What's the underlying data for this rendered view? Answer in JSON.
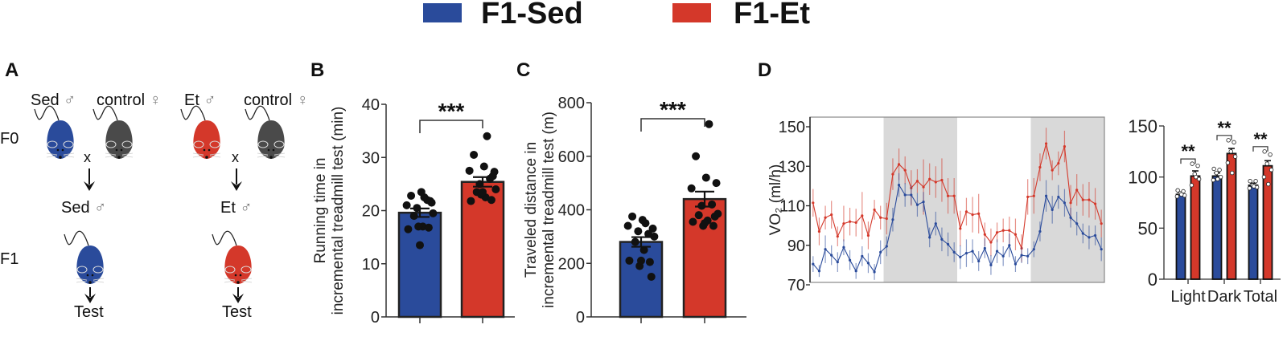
{
  "legend": {
    "items": [
      {
        "label": "F1-Sed",
        "color": "#2a4b9b"
      },
      {
        "label": "F1-Et",
        "color": "#d4382a"
      }
    ]
  },
  "panelA": {
    "letter": "A",
    "rows": {
      "f0": "F0",
      "f1": "F1"
    },
    "left": {
      "sire": "Sed",
      "dam": "control",
      "cross": "x",
      "offspring": "Sed",
      "test": "Test"
    },
    "right": {
      "sire": "Et",
      "dam": "control",
      "cross": "x",
      "offspring": "Et",
      "test": "Test"
    },
    "male_symbol": "♂",
    "female_symbol": "♀",
    "mouse_colors": {
      "sed": "#2a4b9b",
      "et": "#d4382a",
      "control": "#4a4a4a"
    }
  },
  "chart_data": [
    {
      "id": "B",
      "type": "bar",
      "letter": "B",
      "title": "",
      "xlabel": "",
      "ylabel": "Running time in\nincremental treadmill test (min)",
      "ylabel_lines": [
        "Running time in",
        "incremental treadmill test (min)"
      ],
      "ylim": [
        0,
        40
      ],
      "yticks": [
        0,
        10,
        20,
        30,
        40
      ],
      "significance": "***",
      "categories": [
        "F1-Sed",
        "F1-Et"
      ],
      "series": [
        {
          "name": "F1-Sed",
          "mean": 19.6,
          "sem": 0.8,
          "color": "#2a4b9b",
          "points": [
            22.5,
            22.8,
            23.5,
            21.5,
            21.0,
            22.0,
            20.5,
            19.5,
            19.0,
            17.0,
            16.5,
            16.8,
            17.0,
            13.5,
            21.8
          ]
        },
        {
          "name": "F1-Et",
          "mean": 25.4,
          "sem": 0.9,
          "color": "#d4382a",
          "points": [
            34.0,
            30.5,
            28.3,
            27.3,
            27.5,
            26.0,
            25.0,
            24.0,
            23.5,
            22.5,
            21.8,
            22.0,
            23.0,
            23.5,
            26.5
          ]
        }
      ]
    },
    {
      "id": "C",
      "type": "bar",
      "letter": "C",
      "title": "",
      "xlabel": "",
      "ylabel": "Traveled distance in\nincremental treadmill test (m)",
      "ylabel_lines": [
        "Traveled distance in",
        "incremental treadmill test (m)"
      ],
      "ylim": [
        0,
        800
      ],
      "yticks": [
        0,
        200,
        400,
        600,
        800
      ],
      "significance": "***",
      "categories": [
        "F1-Sed",
        "F1-Et"
      ],
      "series": [
        {
          "name": "F1-Sed",
          "mean": 280,
          "sem": 18,
          "color": "#2a4b9b",
          "points": [
            350,
            375,
            362,
            330,
            340,
            310,
            320,
            300,
            280,
            250,
            210,
            205,
            190,
            210,
            150
          ]
        },
        {
          "name": "F1-Et",
          "mean": 440,
          "sem": 28,
          "color": "#d4382a",
          "points": [
            720,
            600,
            520,
            500,
            480,
            420,
            415,
            385,
            380,
            360,
            355,
            340,
            340,
            350,
            375
          ]
        }
      ]
    },
    {
      "id": "D-line",
      "type": "line",
      "letter": "D",
      "title": "",
      "xlabel": "",
      "ylabel": "VO₂ (ml/h)",
      "ylim": [
        70,
        150
      ],
      "yticks": [
        70,
        90,
        110,
        130,
        150
      ],
      "shaded_periods": [
        "dark",
        "dark"
      ],
      "dark_ranges_index": [
        [
          12,
          24
        ],
        [
          36,
          48
        ]
      ],
      "series": [
        {
          "name": "F1-Sed",
          "color": "#2a4b9b",
          "values": [
            80.5,
            77,
            88,
            85,
            81.5,
            89,
            82.5,
            77,
            84.5,
            81,
            76.5,
            86.5,
            89.5,
            103,
            120.5,
            115.5,
            115.5,
            110.5,
            112,
            94,
            101,
            93,
            90.5,
            86.5,
            84,
            86,
            87,
            82,
            88.5,
            80,
            87,
            84.5,
            90,
            80.5,
            85,
            84.5,
            88,
            97,
            115,
            108,
            114.5,
            111.5,
            104,
            101,
            96,
            94,
            95,
            88
          ],
          "errors": [
            4,
            3,
            7,
            5,
            5,
            4,
            5,
            4,
            5,
            5,
            4,
            6,
            5,
            6,
            6,
            6,
            5,
            6,
            5,
            5,
            6,
            6,
            6,
            5,
            6,
            7,
            6,
            5,
            5,
            5,
            6,
            5,
            6,
            4,
            4,
            4,
            4,
            5,
            8,
            7,
            6,
            7,
            5,
            6,
            5,
            6,
            5,
            6
          ]
        },
        {
          "name": "F1-Et",
          "color": "#d4382a",
          "values": [
            111.5,
            97,
            104,
            105.5,
            94.5,
            101,
            102,
            101.5,
            105,
            95,
            108,
            104,
            103.5,
            126,
            131,
            128,
            119,
            122.5,
            119.5,
            123.5,
            122,
            123,
            115,
            115,
            98.5,
            107,
            105.5,
            106,
            95.5,
            91.5,
            96.5,
            97.5,
            97.5,
            95.5,
            88.5,
            114.5,
            115,
            129.5,
            141.5,
            128,
            131.5,
            140,
            111.5,
            118,
            113,
            113,
            111,
            101
          ],
          "errors": [
            7,
            7,
            6,
            7,
            5,
            9,
            7,
            7,
            12,
            7,
            5,
            6,
            8,
            8,
            8,
            7,
            9,
            6,
            14,
            8,
            8,
            11,
            9,
            9,
            9,
            7,
            9,
            10,
            6,
            7,
            5,
            6,
            7,
            8,
            7,
            9,
            9,
            7,
            8,
            5,
            6,
            8,
            9,
            8,
            8,
            9,
            8,
            7
          ]
        }
      ]
    },
    {
      "id": "D-bar",
      "type": "bar",
      "title": "",
      "xlabel": "",
      "ylabel": "",
      "ylim": [
        0,
        150
      ],
      "yticks": [
        0,
        50,
        100,
        150
      ],
      "categories": [
        "Light",
        "Dark",
        "Total"
      ],
      "significance": [
        "**",
        "**",
        "**"
      ],
      "series": [
        {
          "name": "F1-Sed",
          "color": "#2a4b9b",
          "values": [
            83,
            101,
            92
          ],
          "sem": [
            2,
            3,
            2
          ],
          "points": [
            [
              87,
              86,
              84,
              82,
              81,
              83
            ],
            [
              108,
              107,
              104,
              100,
              97,
              98
            ],
            [
              96,
              96,
              92,
              90,
              89,
              91
            ]
          ]
        },
        {
          "name": "F1-Et",
          "color": "#d4382a",
          "values": [
            101,
            123,
            111
          ],
          "sem": [
            5,
            5,
            5
          ],
          "points": [
            [
              113,
              111,
              103,
              98,
              92,
              100
            ],
            [
              136,
              134,
              125,
              120,
              114,
              104
            ],
            [
              125,
              122,
              113,
              107,
              100,
              93
            ]
          ]
        }
      ]
    }
  ]
}
